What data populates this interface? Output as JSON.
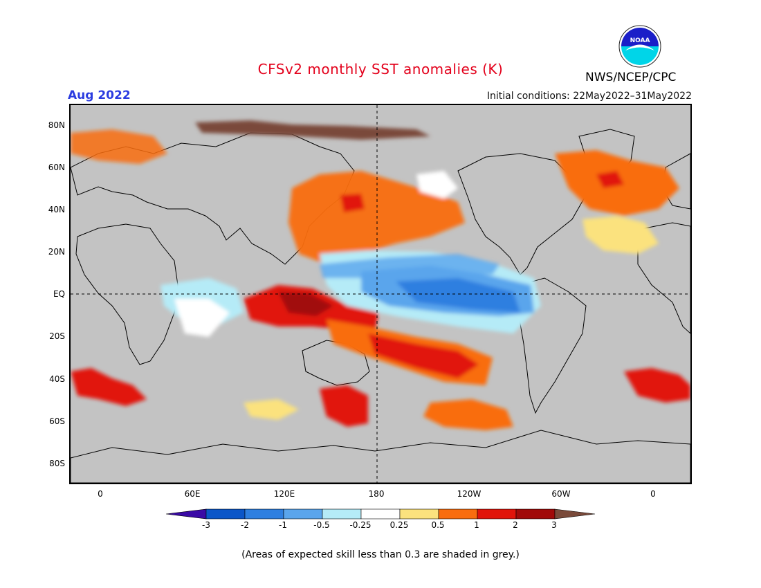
{
  "header": {
    "title": "CFSv2 monthly SST anomalies (K)",
    "title_color": "#e3001b",
    "valid_month": "Aug 2022",
    "valid_color": "#2b3ce0",
    "initial_conditions": "Initial conditions: 22May2022–31May2022",
    "agency": "NWS/NCEP/CPC",
    "logo_text": "NOAA"
  },
  "map": {
    "projection": "equirectangular, Greenwich-centred band -30 to 390",
    "lat_labels": [
      "80N",
      "60N",
      "40N",
      "20N",
      "EQ",
      "20S",
      "40S",
      "60S",
      "80S"
    ],
    "lon_labels": [
      "0",
      "60E",
      "120E",
      "180",
      "120W",
      "60W",
      "0"
    ],
    "land_color": "#c3c3c3",
    "grey_meaning": "skill < 0.3",
    "features": [
      {
        "name": "Nino cold tongue",
        "level": -1.0
      },
      {
        "name": "Maritime Continent warm pool",
        "level": 1.5
      },
      {
        "name": "South Pacific warm band",
        "level": 1.2
      },
      {
        "name": "North Pacific warm region",
        "level": 0.8
      },
      {
        "name": "North Atlantic warm patches",
        "level": 0.6
      },
      {
        "name": "Southern Ocean warm patches",
        "level": 1.0
      },
      {
        "name": "Arctic strong warm",
        "level": 3.2
      }
    ]
  },
  "legend": {
    "levels": [
      "-3",
      "-2",
      "-1",
      "-0.5",
      "-0.25",
      "0.25",
      "0.5",
      "1",
      "2",
      "3"
    ],
    "colors": [
      "#3a0aa6",
      "#0b56c8",
      "#2e7fe0",
      "#5aa5ec",
      "#b5ebf7",
      "#ffffff",
      "#fbe27e",
      "#f96d0f",
      "#e1140a",
      "#a10a09",
      "#7a4a3a"
    ]
  },
  "footer": {
    "note": "(Areas of expected skill less than 0.3 are shaded in grey.)"
  }
}
